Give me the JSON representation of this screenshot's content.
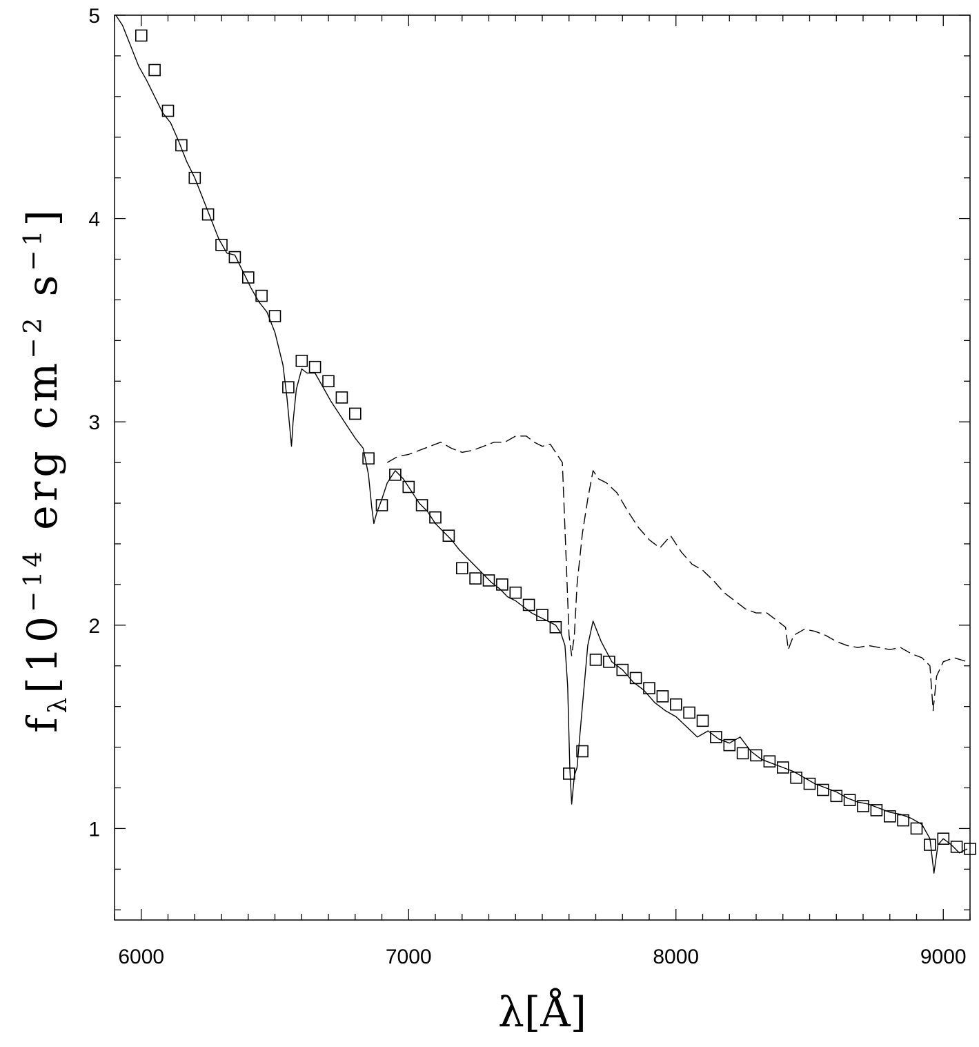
{
  "chart_data": {
    "type": "line",
    "title": "",
    "xlabel": "λ[Å]",
    "ylabel": {
      "prefix": "f",
      "subscript": "λ",
      "base": "[10",
      "exp1": "−14",
      "middle": " erg cm",
      "exp2": "−2",
      "middle2": " s",
      "exp3": "−1",
      "suffix": "]"
    },
    "xlim": [
      5900,
      9100
    ],
    "ylim": [
      0.55,
      5.0
    ],
    "x_ticks": [
      6000,
      7000,
      8000,
      9000
    ],
    "y_ticks": [
      1,
      2,
      3,
      4,
      5
    ],
    "x_tick_labels": [
      "6000",
      "7000",
      "8000",
      "9000"
    ],
    "y_tick_labels": [
      "1",
      "2",
      "3",
      "4",
      "5"
    ],
    "x_minor_step": 100,
    "y_minor_step": 0.2,
    "grid": false,
    "legend": "none",
    "series": [
      {
        "style": "solid",
        "x": [
          5905,
          5930,
          5960,
          5990,
          6020,
          6050,
          6080,
          6110,
          6140,
          6170,
          6200,
          6230,
          6260,
          6290,
          6320,
          6350,
          6380,
          6410,
          6440,
          6470,
          6500,
          6530,
          6545,
          6555,
          6562,
          6568,
          6580,
          6600,
          6620,
          6650,
          6680,
          6710,
          6740,
          6770,
          6800,
          6830,
          6850,
          6862,
          6870,
          6880,
          6900,
          6920,
          6950,
          6980,
          7010,
          7040,
          7070,
          7100,
          7130,
          7160,
          7190,
          7220,
          7250,
          7280,
          7310,
          7340,
          7370,
          7400,
          7430,
          7460,
          7490,
          7520,
          7550,
          7570,
          7585,
          7595,
          7603,
          7610,
          7620,
          7630,
          7650,
          7670,
          7690,
          7720,
          7760,
          7800,
          7840,
          7880,
          7920,
          7960,
          8000,
          8040,
          8080,
          8120,
          8160,
          8200,
          8240,
          8280,
          8320,
          8360,
          8400,
          8440,
          8480,
          8520,
          8560,
          8600,
          8640,
          8680,
          8720,
          8760,
          8800,
          8840,
          8880,
          8920,
          8950,
          8965,
          8980,
          9000,
          9030,
          9060,
          9090
        ],
        "y": [
          5.0,
          4.95,
          4.85,
          4.75,
          4.68,
          4.6,
          4.52,
          4.47,
          4.38,
          4.28,
          4.2,
          4.1,
          4.0,
          3.9,
          3.83,
          3.82,
          3.74,
          3.66,
          3.59,
          3.54,
          3.44,
          3.28,
          3.12,
          2.98,
          2.88,
          3.0,
          3.16,
          3.26,
          3.24,
          3.24,
          3.17,
          3.1,
          3.04,
          2.98,
          2.92,
          2.87,
          2.74,
          2.58,
          2.5,
          2.55,
          2.62,
          2.7,
          2.76,
          2.72,
          2.66,
          2.6,
          2.56,
          2.5,
          2.46,
          2.42,
          2.37,
          2.33,
          2.29,
          2.25,
          2.21,
          2.18,
          2.14,
          2.12,
          2.09,
          2.06,
          2.04,
          2.02,
          2.0,
          1.96,
          1.9,
          1.7,
          1.3,
          1.12,
          1.26,
          1.3,
          1.6,
          1.9,
          2.02,
          1.92,
          1.82,
          1.78,
          1.72,
          1.68,
          1.62,
          1.58,
          1.55,
          1.5,
          1.45,
          1.48,
          1.44,
          1.42,
          1.45,
          1.38,
          1.34,
          1.32,
          1.3,
          1.28,
          1.25,
          1.22,
          1.2,
          1.18,
          1.15,
          1.13,
          1.12,
          1.1,
          1.08,
          1.07,
          1.05,
          1.02,
          0.95,
          0.78,
          0.92,
          0.95,
          0.92,
          0.88,
          0.9
        ]
      },
      {
        "style": "dashed",
        "x": [
          6920,
          6960,
          7000,
          7040,
          7080,
          7120,
          7160,
          7200,
          7240,
          7280,
          7320,
          7360,
          7400,
          7440,
          7470,
          7500,
          7530,
          7555,
          7575,
          7590,
          7600,
          7610,
          7620,
          7630,
          7650,
          7670,
          7690,
          7710,
          7740,
          7780,
          7820,
          7860,
          7900,
          7940,
          7980,
          8020,
          8060,
          8100,
          8140,
          8180,
          8220,
          8260,
          8300,
          8340,
          8380,
          8410,
          8420,
          8440,
          8480,
          8520,
          8560,
          8600,
          8640,
          8680,
          8720,
          8760,
          8800,
          8840,
          8880,
          8920,
          8950,
          8962,
          8975,
          9000,
          9040,
          9090
        ],
        "y": [
          2.8,
          2.83,
          2.84,
          2.86,
          2.88,
          2.9,
          2.87,
          2.85,
          2.86,
          2.88,
          2.9,
          2.9,
          2.93,
          2.93,
          2.9,
          2.88,
          2.89,
          2.84,
          2.8,
          2.3,
          1.95,
          1.85,
          1.95,
          2.2,
          2.45,
          2.62,
          2.76,
          2.72,
          2.7,
          2.65,
          2.56,
          2.48,
          2.42,
          2.38,
          2.44,
          2.36,
          2.3,
          2.27,
          2.22,
          2.16,
          2.12,
          2.08,
          2.06,
          2.06,
          2.02,
          1.99,
          1.88,
          1.95,
          1.98,
          1.97,
          1.95,
          1.92,
          1.9,
          1.89,
          1.9,
          1.89,
          1.88,
          1.89,
          1.86,
          1.84,
          1.8,
          1.58,
          1.75,
          1.82,
          1.84,
          1.82
        ]
      },
      {
        "style": "markers",
        "marker": "open-square",
        "x": [
          6000,
          6050,
          6100,
          6150,
          6200,
          6250,
          6300,
          6350,
          6400,
          6450,
          6500,
          6550,
          6600,
          6650,
          6700,
          6750,
          6800,
          6850,
          6900,
          6950,
          7000,
          7050,
          7100,
          7150,
          7200,
          7250,
          7300,
          7350,
          7400,
          7450,
          7500,
          7550,
          7600,
          7650,
          7700,
          7750,
          7800,
          7850,
          7900,
          7950,
          8000,
          8050,
          8100,
          8150,
          8200,
          8250,
          8300,
          8350,
          8400,
          8450,
          8500,
          8550,
          8600,
          8650,
          8700,
          8750,
          8800,
          8850,
          8900,
          8950,
          9000,
          9050,
          9100
        ],
        "y": [
          4.9,
          4.73,
          4.53,
          4.36,
          4.2,
          4.02,
          3.87,
          3.81,
          3.71,
          3.62,
          3.52,
          3.17,
          3.3,
          3.27,
          3.2,
          3.12,
          3.04,
          2.82,
          2.59,
          2.74,
          2.68,
          2.59,
          2.53,
          2.44,
          2.28,
          2.23,
          2.22,
          2.2,
          2.16,
          2.1,
          2.05,
          1.99,
          1.27,
          1.38,
          1.83,
          1.82,
          1.78,
          1.74,
          1.69,
          1.65,
          1.61,
          1.57,
          1.53,
          1.45,
          1.41,
          1.37,
          1.36,
          1.33,
          1.3,
          1.25,
          1.22,
          1.19,
          1.16,
          1.14,
          1.11,
          1.09,
          1.06,
          1.04,
          1.0,
          0.92,
          0.95,
          0.91,
          0.9
        ]
      }
    ]
  }
}
